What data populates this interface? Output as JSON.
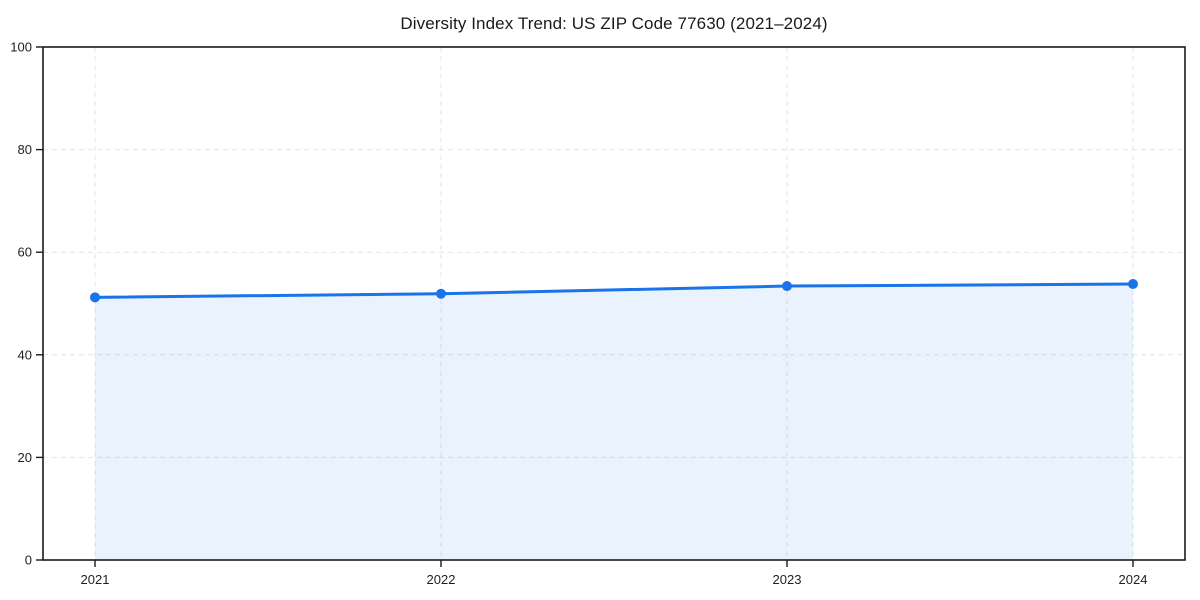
{
  "chart_data": {
    "type": "line",
    "title": "Diversity Index Trend: US ZIP Code 77630 (2021–2024)",
    "x": [
      "2021",
      "2022",
      "2023",
      "2024"
    ],
    "series": [
      {
        "name": "Diversity Index",
        "values": [
          51.2,
          51.9,
          53.4,
          53.8
        ]
      }
    ],
    "xlabel": "",
    "ylabel": "",
    "ylim": [
      0,
      100
    ],
    "yticks": [
      0,
      20,
      40,
      60,
      80,
      100
    ],
    "grid": true,
    "grid_style": "dashed",
    "legend_position": "none",
    "area_fill": true,
    "marker": "circle",
    "colors": {
      "line": "#1a73e8",
      "fill": "#1a73e8",
      "grid": "#e4e4e4",
      "axis": "#1a1a1a",
      "tick_text": "#1f1f1f"
    }
  }
}
